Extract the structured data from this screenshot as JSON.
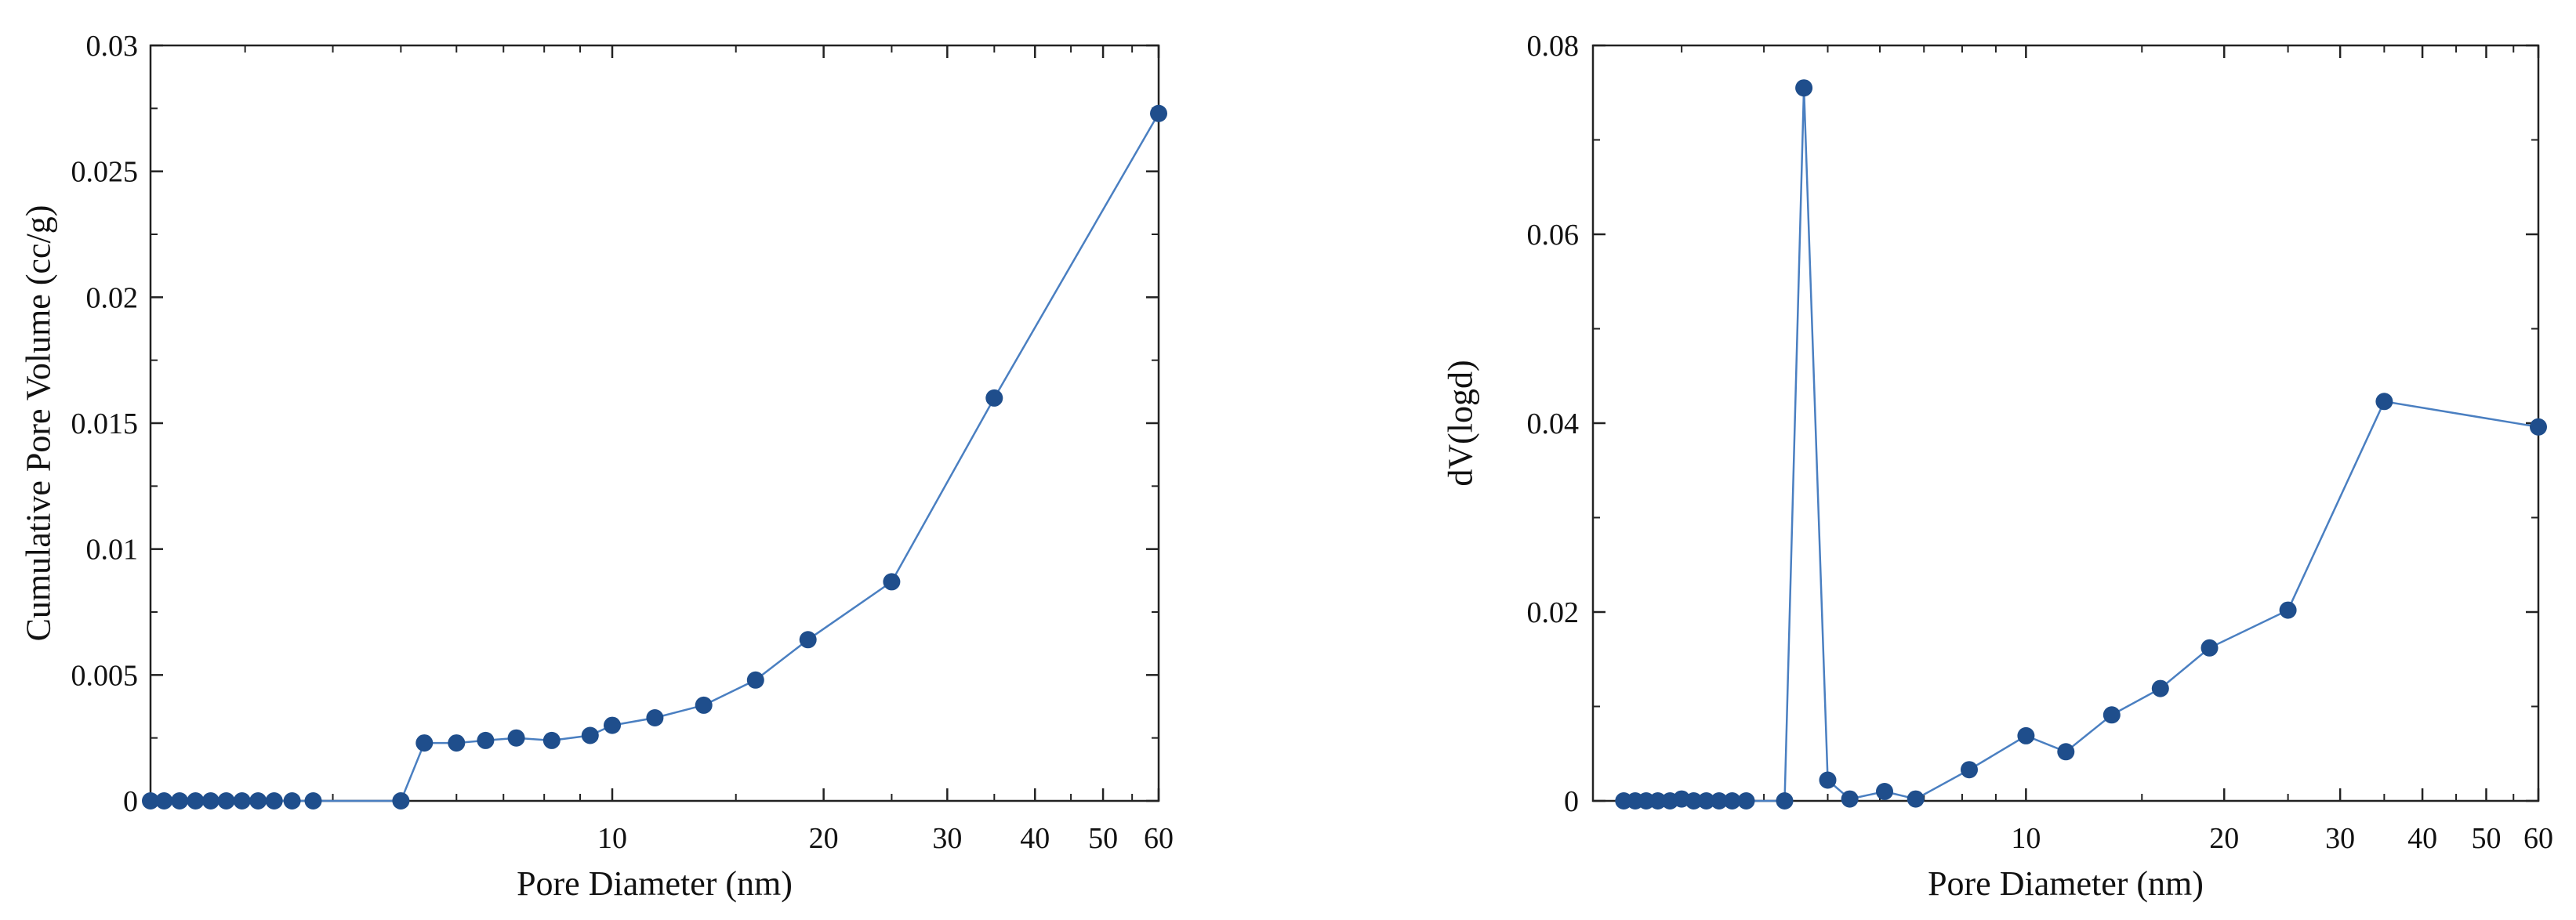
{
  "chart_data": [
    {
      "type": "line",
      "xlabel": "Pore Diameter (nm)",
      "ylabel": "Cumulative Pore Volume (cc/g)",
      "xscale": "log",
      "xlim": [
        2.2,
        60
      ],
      "ylim": [
        0,
        0.03
      ],
      "x_tick_labels": [
        "10",
        "20",
        "30",
        "40",
        "50",
        "60"
      ],
      "y_ticks": [
        0,
        0.005,
        0.01,
        0.015,
        0.02,
        0.025,
        0.03
      ],
      "y_tick_labels": [
        "0",
        "0.005",
        "0.01",
        "0.015",
        "0.02",
        "0.025",
        "0.03"
      ],
      "grid": false,
      "series": [
        {
          "color": "#1f4e8c",
          "x": [
            2.2,
            2.3,
            2.42,
            2.55,
            2.68,
            2.82,
            2.97,
            3.13,
            3.3,
            3.5,
            3.75,
            5.0,
            5.4,
            6.0,
            6.6,
            7.3,
            8.2,
            9.3,
            10.0,
            11.5,
            13.5,
            16.0,
            19.0,
            25.0,
            35.0,
            60.0
          ],
          "y": [
            0,
            0,
            0,
            0,
            0,
            0,
            0,
            0,
            0,
            0,
            0,
            0,
            0.0023,
            0.0023,
            0.0024,
            0.0025,
            0.0024,
            0.0026,
            0.003,
            0.0033,
            0.0038,
            0.0048,
            0.0064,
            0.0087,
            0.016,
            0.0273
          ]
        }
      ]
    },
    {
      "type": "line",
      "xlabel": "Pore Diameter (nm)",
      "ylabel": "dV(logd)",
      "xscale": "log",
      "xlim": [
        2.2,
        60
      ],
      "ylim": [
        0,
        0.08
      ],
      "x_tick_labels": [
        "10",
        "20",
        "30",
        "40",
        "50",
        "60"
      ],
      "y_ticks": [
        0,
        0.02,
        0.04,
        0.06,
        0.08
      ],
      "y_tick_labels": [
        "0",
        "0.02",
        "0.04",
        "0.06",
        "0.08"
      ],
      "grid": false,
      "series": [
        {
          "color": "#1f4e8c",
          "x": [
            2.45,
            2.55,
            2.65,
            2.76,
            2.88,
            3.0,
            3.13,
            3.27,
            3.42,
            3.58,
            3.76,
            4.3,
            4.6,
            5.0,
            5.4,
            6.1,
            6.8,
            8.2,
            10.0,
            11.5,
            13.5,
            16.0,
            19.0,
            25.0,
            35.0,
            60.0
          ],
          "y": [
            0,
            0,
            0,
            0,
            0,
            0.0002,
            0,
            0,
            0,
            0,
            0,
            0,
            0.0755,
            0.0022,
            0.0002,
            0.001,
            0.0002,
            0.0033,
            0.0069,
            0.0052,
            0.0091,
            0.0119,
            0.0162,
            0.0202,
            0.0423,
            0.0396
          ]
        }
      ]
    }
  ]
}
